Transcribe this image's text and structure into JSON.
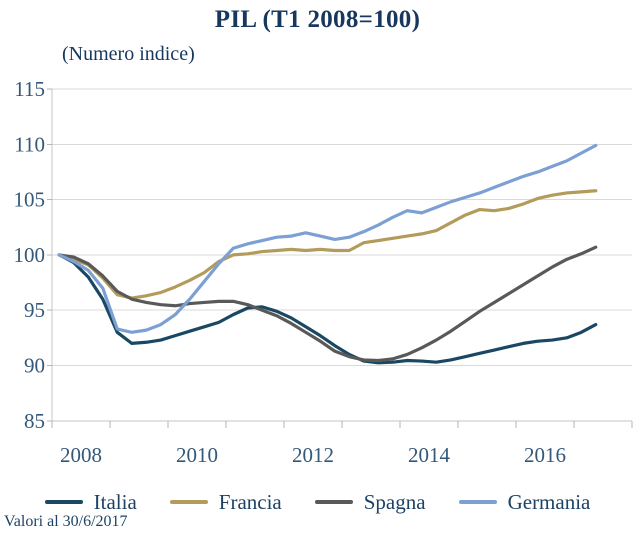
{
  "page": {
    "title": "PIL (T1 2008=100)",
    "subtitle": "(Numero indice)",
    "footnote": "Valori al 30/6/2017"
  },
  "colors": {
    "title_text": "#17375e",
    "axis_text": "#33587a",
    "gridline": "#d9d9d9",
    "axis_line": "#c4c4c4",
    "tick_mark": "#b5b5b5"
  },
  "chart_data": {
    "type": "line",
    "title": "PIL (T1 2008=100)",
    "subtitle": "(Numero indice)",
    "footnote": "Valori al 30/6/2017",
    "x_unit": "quarter",
    "grid": "horizontal",
    "legend_position": "bottom",
    "ylim": [
      85,
      115
    ],
    "y_ticks": [
      115,
      110,
      105,
      100,
      95,
      90,
      85
    ],
    "x_tick_labels": [
      "2008",
      "2010",
      "2012",
      "2014",
      "2016"
    ],
    "x_categories": [
      "2008-Q1",
      "2008-Q2",
      "2008-Q3",
      "2008-Q4",
      "2009-Q1",
      "2009-Q2",
      "2009-Q3",
      "2009-Q4",
      "2010-Q1",
      "2010-Q2",
      "2010-Q3",
      "2010-Q4",
      "2011-Q1",
      "2011-Q2",
      "2011-Q3",
      "2011-Q4",
      "2012-Q1",
      "2012-Q2",
      "2012-Q3",
      "2012-Q4",
      "2013-Q1",
      "2013-Q2",
      "2013-Q3",
      "2013-Q4",
      "2014-Q1",
      "2014-Q2",
      "2014-Q3",
      "2014-Q4",
      "2015-Q1",
      "2015-Q2",
      "2015-Q3",
      "2015-Q4",
      "2016-Q1",
      "2016-Q2",
      "2016-Q3",
      "2016-Q4",
      "2017-Q1",
      "2017-Q2"
    ],
    "series": [
      {
        "name": "Italia",
        "color": "#1a4862",
        "values": [
          100,
          99.3,
          98.0,
          96.0,
          93.0,
          92.0,
          92.1,
          92.3,
          92.7,
          93.1,
          93.5,
          93.9,
          94.6,
          95.2,
          95.3,
          94.9,
          94.3,
          93.5,
          92.7,
          91.8,
          91.0,
          90.4,
          90.25,
          90.3,
          90.45,
          90.4,
          90.3,
          90.5,
          90.8,
          91.1,
          91.4,
          91.7,
          92.0,
          92.2,
          92.3,
          92.5,
          93.0,
          93.7
        ]
      },
      {
        "name": "Francia",
        "color": "#b39b5b",
        "values": [
          100,
          99.6,
          99.1,
          97.9,
          96.4,
          96.1,
          96.3,
          96.6,
          97.1,
          97.7,
          98.4,
          99.4,
          100.0,
          100.1,
          100.3,
          100.4,
          100.5,
          100.4,
          100.5,
          100.4,
          100.4,
          101.1,
          101.3,
          101.5,
          101.7,
          101.9,
          102.2,
          102.9,
          103.6,
          104.1,
          104.0,
          104.2,
          104.6,
          105.1,
          105.4,
          105.6,
          105.7,
          105.8
        ]
      },
      {
        "name": "Spagna",
        "color": "#595959",
        "values": [
          100,
          99.8,
          99.2,
          98.1,
          96.7,
          96.0,
          95.7,
          95.5,
          95.4,
          95.6,
          95.7,
          95.8,
          95.8,
          95.5,
          95.0,
          94.5,
          93.8,
          93.0,
          92.2,
          91.3,
          90.8,
          90.5,
          90.45,
          90.6,
          91.0,
          91.6,
          92.3,
          93.1,
          94.0,
          94.9,
          95.7,
          96.5,
          97.3,
          98.1,
          98.9,
          99.6,
          100.1,
          100.7
        ]
      },
      {
        "name": "Germania",
        "color": "#7da0d4",
        "values": [
          100,
          99.4,
          98.6,
          97.0,
          93.3,
          93.0,
          93.2,
          93.7,
          94.6,
          96.0,
          97.6,
          99.2,
          100.6,
          101.0,
          101.3,
          101.6,
          101.7,
          102.0,
          101.7,
          101.4,
          101.6,
          102.1,
          102.7,
          103.4,
          104.0,
          103.8,
          104.3,
          104.8,
          105.2,
          105.6,
          106.1,
          106.6,
          107.1,
          107.5,
          108.0,
          108.5,
          109.2,
          109.9
        ]
      }
    ]
  }
}
